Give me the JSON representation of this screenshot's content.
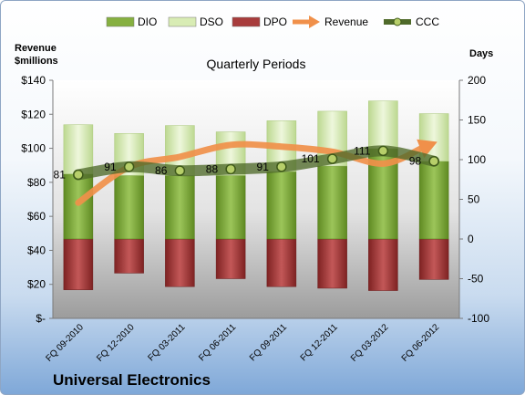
{
  "chart_data": {
    "type": "bar",
    "title": "Quarterly Periods",
    "company": "Universal Electronics",
    "left_axis_label": "Revenue\n$millions",
    "right_axis_label": "Days",
    "categories": [
      "FQ 09-2010",
      "FQ 12-2010",
      "FQ 03-2011",
      "FQ 06-2011",
      "FQ 09-2011",
      "FQ 12-2011",
      "FQ 03-2012",
      "FQ 06-2012"
    ],
    "left_axis": {
      "min": 0,
      "max": 140,
      "ticks": [
        "$-",
        "$20",
        "$40",
        "$60",
        "$80",
        "$100",
        "$120",
        "$140"
      ]
    },
    "right_axis": {
      "min": -100,
      "max": 200,
      "ticks": [
        "-100",
        "-50",
        "0",
        "50",
        "100",
        "150",
        "200"
      ]
    },
    "series": [
      {
        "name": "DIO",
        "axis": "right",
        "values": [
          82,
          80,
          80,
          80,
          85,
          92,
          114,
          98
        ]
      },
      {
        "name": "DSO",
        "axis": "right",
        "values": [
          62,
          53,
          63,
          55,
          64,
          69,
          60,
          60
        ]
      },
      {
        "name": "DPO",
        "axis": "right",
        "values": [
          -64,
          -43,
          -60,
          -50,
          -60,
          -62,
          -65,
          -51
        ]
      },
      {
        "name": "Revenue",
        "axis": "left",
        "values": [
          68,
          89,
          95,
          102,
          101,
          98,
          91,
          103
        ]
      },
      {
        "name": "CCC",
        "axis": "right",
        "values": [
          81,
          91,
          86,
          88,
          91,
          101,
          111,
          98
        ]
      }
    ],
    "ccc_labels": [
      "81",
      "91",
      "86",
      "88",
      "91",
      "101",
      "111",
      "98"
    ],
    "colors": {
      "DIO": "#7fa83a",
      "DSO": "#d6eab2",
      "DPO": "#a83c3c",
      "Revenue": "#f0904a",
      "CCC": "#556b2f"
    },
    "legend": "top",
    "grid": false
  }
}
